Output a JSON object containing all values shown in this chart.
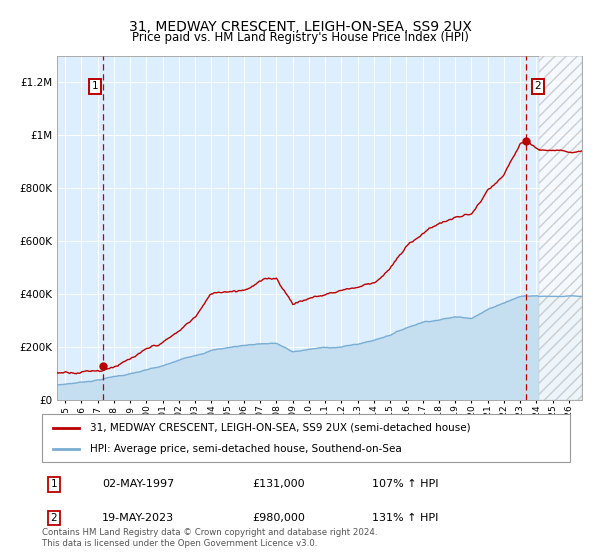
{
  "title": "31, MEDWAY CRESCENT, LEIGH-ON-SEA, SS9 2UX",
  "subtitle": "Price paid vs. HM Land Registry's House Price Index (HPI)",
  "ylim": [
    0,
    1300000
  ],
  "xlim_start": 1994.5,
  "xlim_end": 2026.8,
  "plot_bg_color": "#ddeeff",
  "hatch_region_start": 2024.17,
  "sale1_year": 1997.33,
  "sale1_price": 131000,
  "sale2_year": 2023.37,
  "sale2_price": 980000,
  "legend_line1": "31, MEDWAY CRESCENT, LEIGH-ON-SEA, SS9 2UX (semi-detached house)",
  "legend_line2": "HPI: Average price, semi-detached house, Southend-on-Sea",
  "annotation1_date": "02-MAY-1997",
  "annotation1_price": "£131,000",
  "annotation1_hpi": "107% ↑ HPI",
  "annotation2_date": "19-MAY-2023",
  "annotation2_price": "£980,000",
  "annotation2_hpi": "131% ↑ HPI",
  "footer": "Contains HM Land Registry data © Crown copyright and database right 2024.\nThis data is licensed under the Open Government Licence v3.0.",
  "red_color": "#bb0000",
  "blue_color": "#7aadd4",
  "blue_fill_color": "#c5dff0",
  "grid_color": "#ffffff",
  "ytick_labels": [
    "£0",
    "£200K",
    "£400K",
    "£600K",
    "£800K",
    "£1M",
    "£1.2M"
  ],
  "ytick_values": [
    0,
    200000,
    400000,
    600000,
    800000,
    1000000,
    1200000
  ],
  "title_fontsize": 10,
  "subtitle_fontsize": 9
}
